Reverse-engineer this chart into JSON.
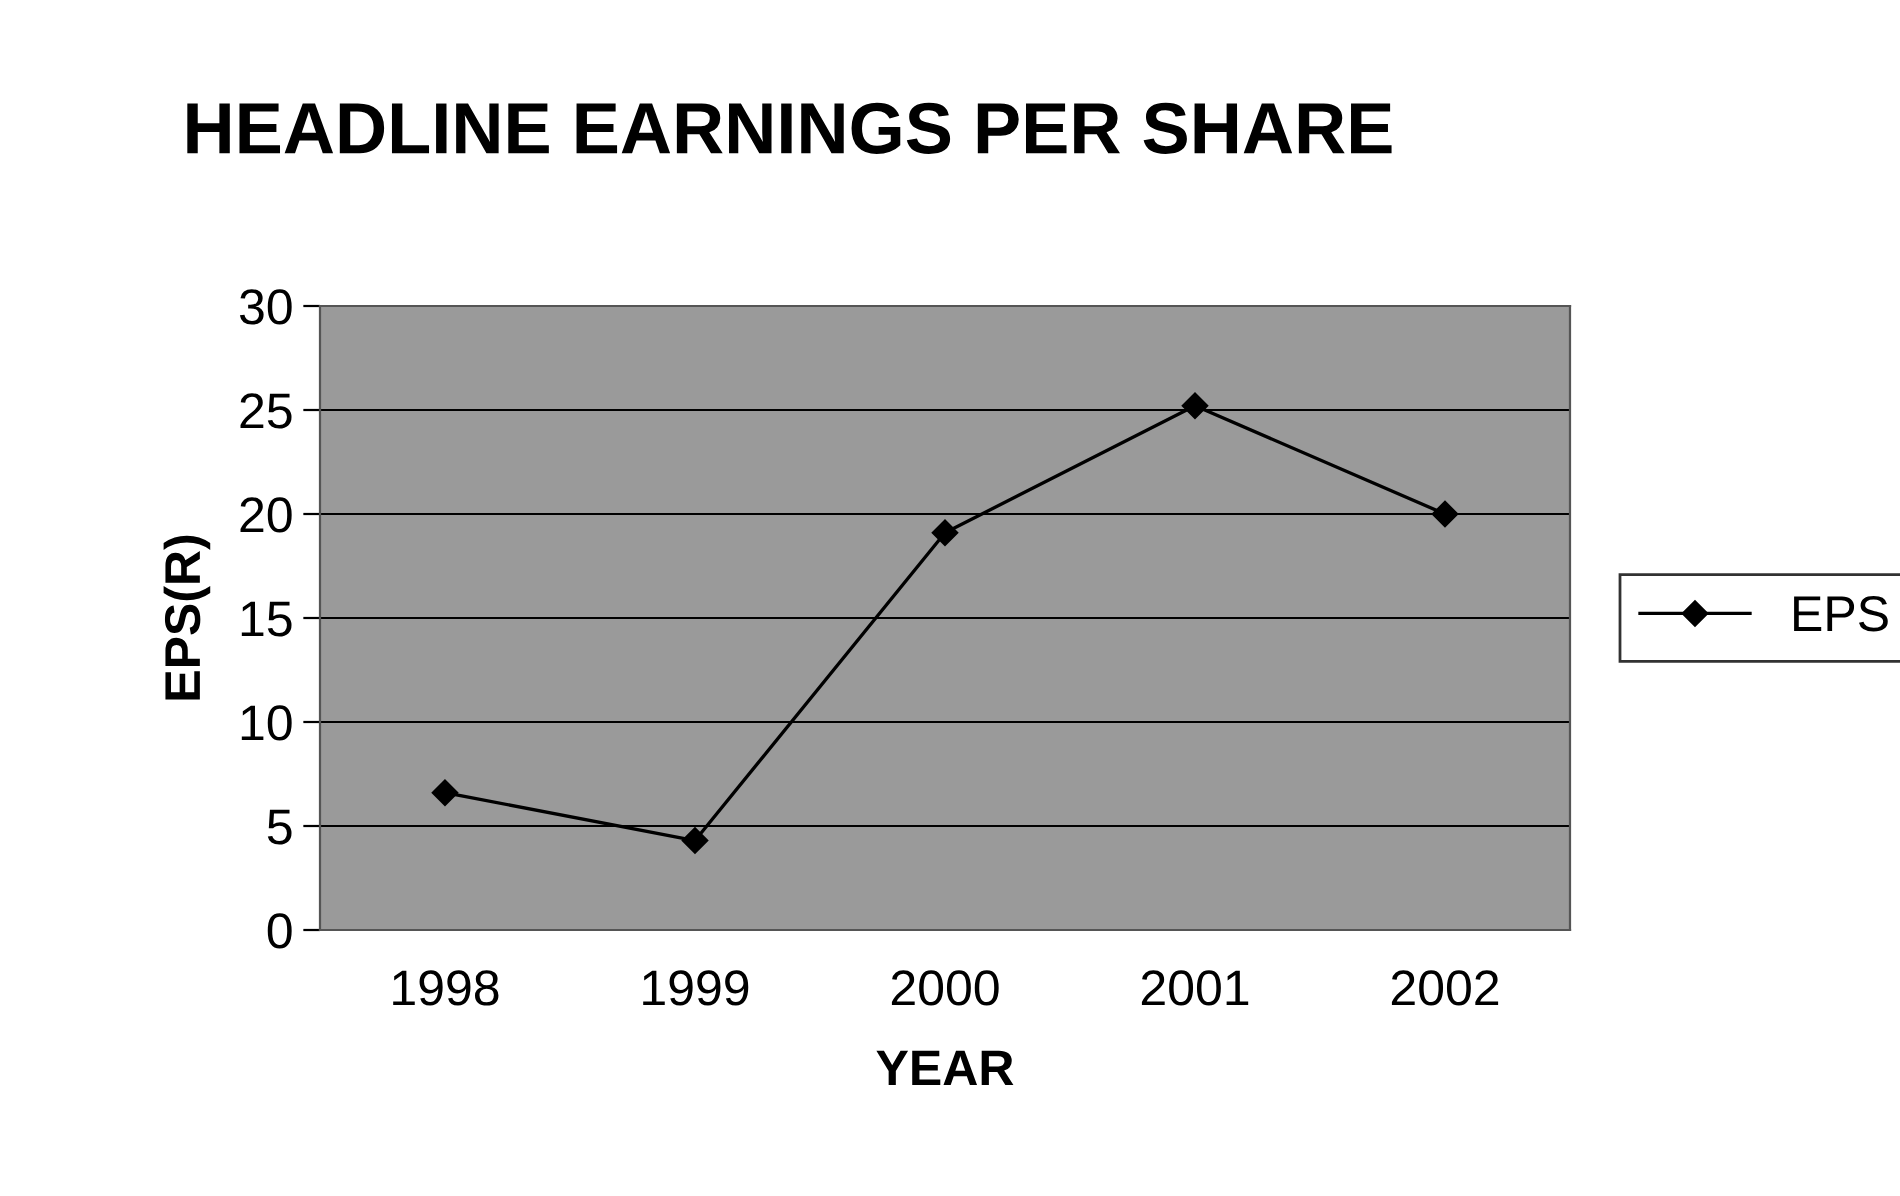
{
  "chart_data": {
    "type": "line",
    "title": "HEADLINE EARNINGS PER SHARE",
    "xlabel": "YEAR",
    "ylabel": "EPS(R)",
    "categories": [
      "1998",
      "1999",
      "2000",
      "2001",
      "2002"
    ],
    "series": [
      {
        "name": "EPS",
        "color": "#000000",
        "values": [
          6.6,
          4.3,
          19.1,
          25.2,
          20.0
        ]
      }
    ],
    "ylim": [
      0,
      30
    ],
    "yticks": [
      0,
      5,
      10,
      15,
      20,
      25,
      30
    ],
    "grid": "y",
    "legend": "right",
    "marker": "diamond",
    "line_style": "solid"
  }
}
